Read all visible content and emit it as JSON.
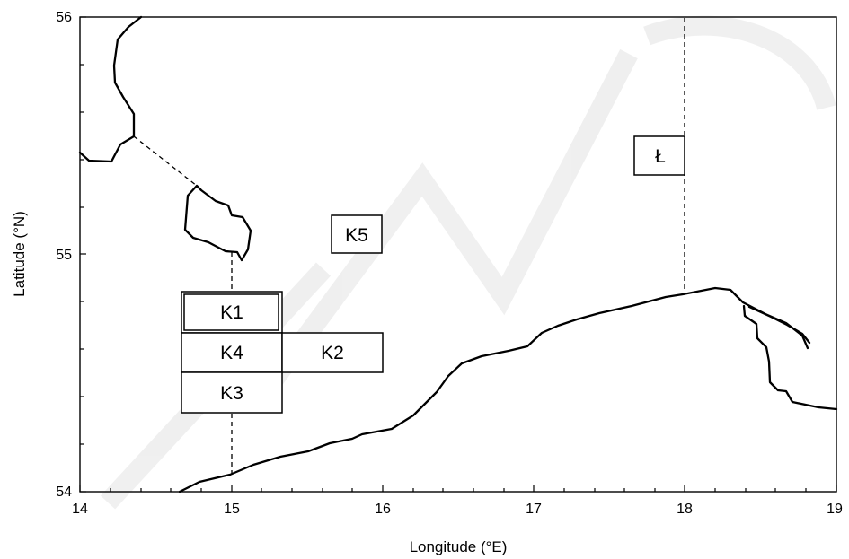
{
  "map": {
    "xlabel": "Longitude (°E)",
    "ylabel": "Latitude (°N)",
    "x_ticks": [
      "14",
      "15",
      "16",
      "17",
      "18",
      "19"
    ],
    "y_ticks": [
      "54",
      "55",
      "56"
    ],
    "areas": {
      "K1": "K1",
      "K2": "K2",
      "K3": "K3",
      "K4": "K4",
      "K5": "K5",
      "L": "Ł"
    },
    "watermark": "UMCS"
  }
}
